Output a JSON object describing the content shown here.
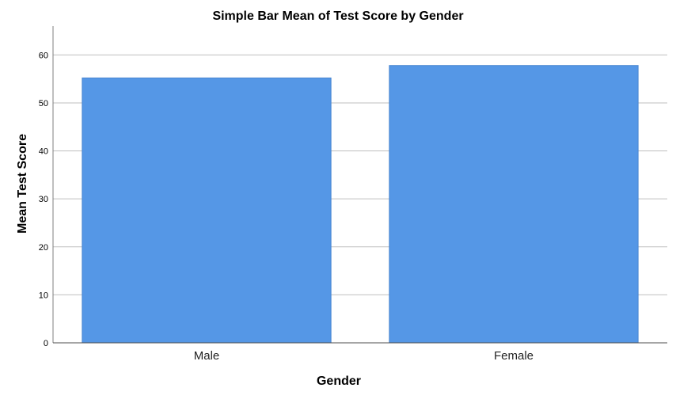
{
  "chart_data": {
    "type": "bar",
    "title": "Simple Bar Mean of Test Score by Gender",
    "xlabel": "Gender",
    "ylabel": "Mean Test Score",
    "categories": [
      "Male",
      "Female"
    ],
    "values": [
      55.2,
      57.8
    ],
    "ylim": [
      0,
      66
    ],
    "yticks": [
      0,
      10,
      20,
      30,
      40,
      50,
      60
    ],
    "grid": true,
    "colors": {
      "bar": "#5597e6",
      "bar_edge": "#4a86d0",
      "grid": "#bfbfbf",
      "axis": "#7f7f7f"
    }
  }
}
